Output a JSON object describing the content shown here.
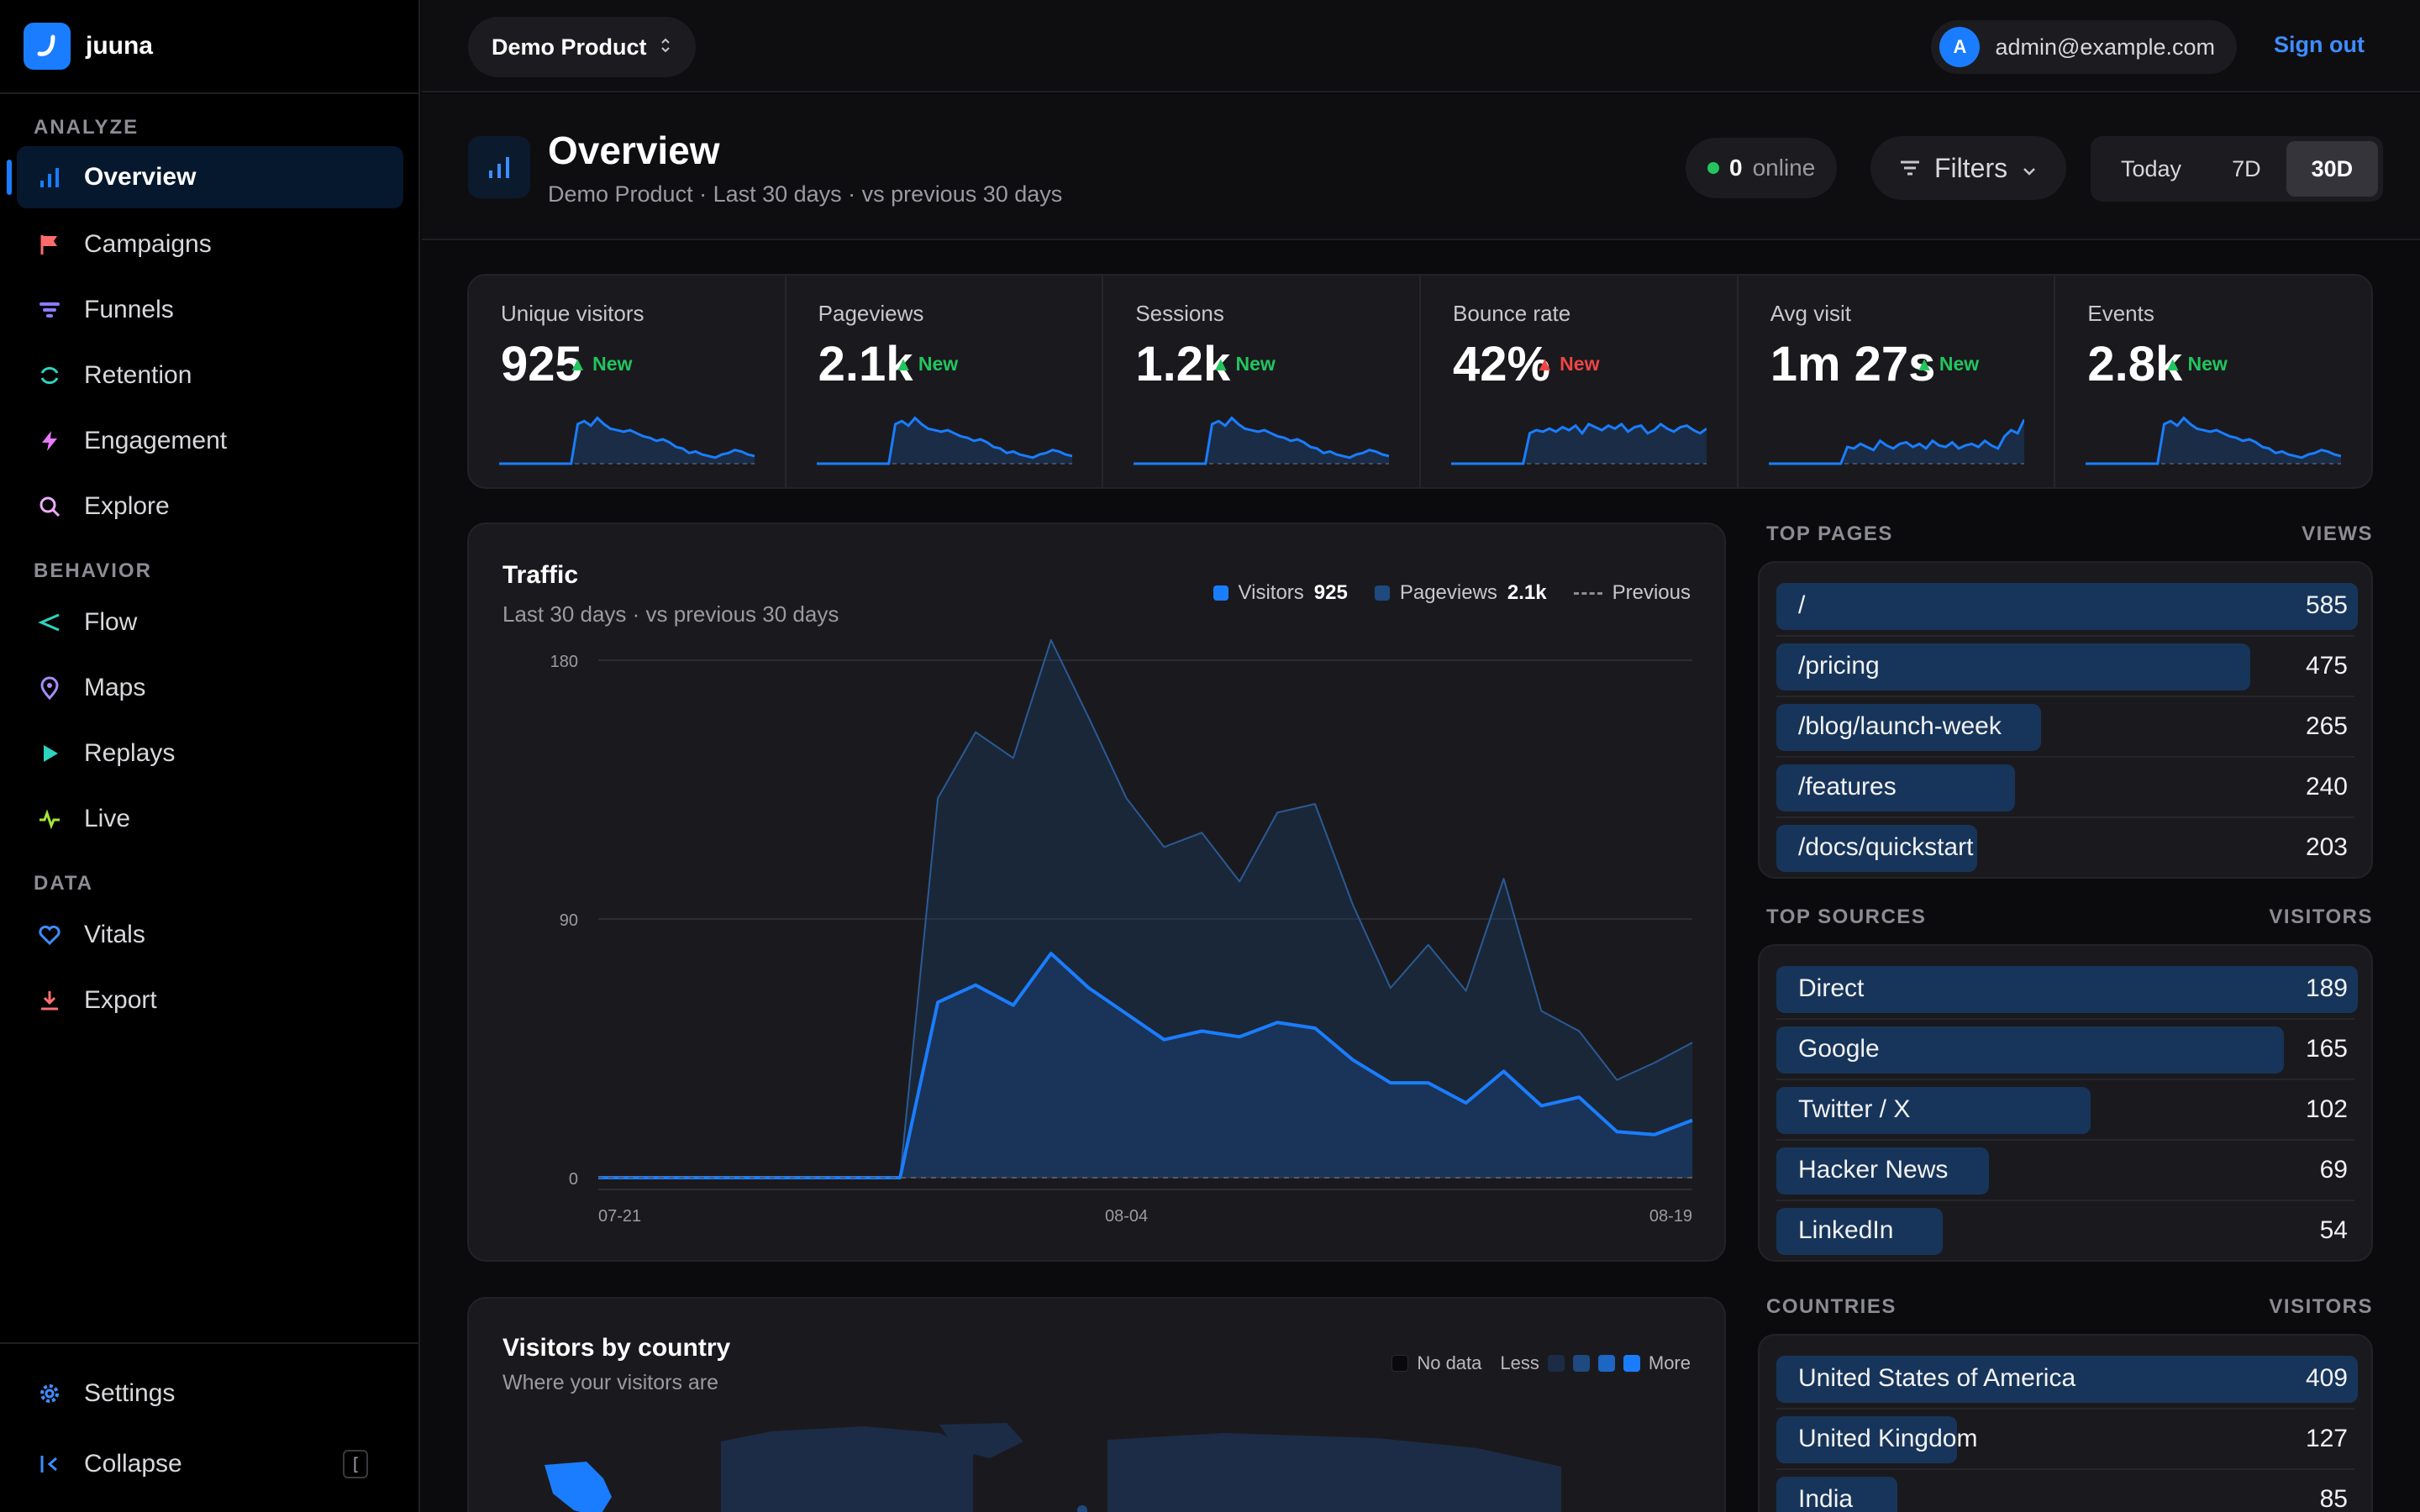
{
  "app": {
    "name": "juuna"
  },
  "sidebar": {
    "sections": [
      {
        "title": "ANALYZE",
        "items": [
          {
            "label": "Overview",
            "icon": "bar-chart-icon",
            "active": true
          },
          {
            "label": "Campaigns",
            "icon": "flag-icon"
          },
          {
            "label": "Funnels",
            "icon": "funnel-icon"
          },
          {
            "label": "Retention",
            "icon": "refresh-icon"
          },
          {
            "label": "Engagement",
            "icon": "bolt-icon"
          },
          {
            "label": "Explore",
            "icon": "search-icon"
          }
        ]
      },
      {
        "title": "BEHAVIOR",
        "items": [
          {
            "label": "Flow",
            "icon": "share-icon"
          },
          {
            "label": "Maps",
            "icon": "map-pin-icon"
          },
          {
            "label": "Replays",
            "icon": "play-icon"
          },
          {
            "label": "Live",
            "icon": "pulse-icon"
          }
        ]
      },
      {
        "title": "DATA",
        "items": [
          {
            "label": "Vitals",
            "icon": "heart-icon"
          },
          {
            "label": "Export",
            "icon": "download-icon"
          }
        ]
      }
    ],
    "settings_label": "Settings",
    "collapse_label": "Collapse",
    "collapse_shortcut": "["
  },
  "topbar": {
    "product": "Demo Product",
    "account_initial": "A",
    "account_email": "admin@example.com",
    "signout_label": "Sign out"
  },
  "header": {
    "title": "Overview",
    "subtitle": "Demo Product · Last 30 days · vs previous 30 days",
    "online_count": "0",
    "online_label": "online",
    "filters_label": "Filters",
    "ranges": [
      "Today",
      "7D",
      "30D"
    ],
    "active_range": "30D"
  },
  "kpis": [
    {
      "label": "Unique visitors",
      "value": "925",
      "trend": "New",
      "direction": "up",
      "spark": [
        0,
        0,
        0,
        0,
        0,
        0,
        0,
        0,
        0,
        0,
        0,
        0,
        52,
        56,
        50,
        60,
        52,
        46,
        44,
        42,
        44,
        40,
        36,
        34,
        30,
        32,
        28,
        22,
        20,
        14,
        16,
        12,
        10,
        8,
        12,
        14,
        18,
        16,
        12,
        10
      ]
    },
    {
      "label": "Pageviews",
      "value": "2.1k",
      "trend": "New",
      "direction": "up",
      "spark": [
        0,
        0,
        0,
        0,
        0,
        0,
        0,
        0,
        0,
        0,
        0,
        0,
        52,
        56,
        50,
        60,
        52,
        46,
        44,
        42,
        44,
        40,
        36,
        34,
        30,
        32,
        28,
        22,
        20,
        14,
        16,
        12,
        10,
        8,
        12,
        14,
        18,
        16,
        12,
        10
      ]
    },
    {
      "label": "Sessions",
      "value": "1.2k",
      "trend": "New",
      "direction": "up",
      "spark": [
        0,
        0,
        0,
        0,
        0,
        0,
        0,
        0,
        0,
        0,
        0,
        0,
        52,
        56,
        50,
        60,
        52,
        46,
        44,
        42,
        44,
        40,
        36,
        34,
        30,
        32,
        28,
        22,
        20,
        14,
        16,
        12,
        10,
        8,
        12,
        14,
        18,
        16,
        12,
        10
      ]
    },
    {
      "label": "Bounce rate",
      "value": "42%",
      "trend": "New",
      "direction": "down",
      "spark": [
        0,
        0,
        0,
        0,
        0,
        0,
        0,
        0,
        0,
        0,
        0,
        0,
        40,
        44,
        42,
        46,
        42,
        48,
        44,
        50,
        40,
        52,
        48,
        44,
        50,
        46,
        52,
        42,
        48,
        50,
        40,
        44,
        52,
        46,
        42,
        48,
        50,
        44,
        40,
        46
      ]
    },
    {
      "label": "Avg visit",
      "value": "1m 27s",
      "trend": "New",
      "direction": "up",
      "spark": [
        0,
        0,
        0,
        0,
        0,
        0,
        0,
        0,
        0,
        0,
        0,
        0,
        22,
        20,
        26,
        22,
        18,
        30,
        24,
        20,
        26,
        28,
        22,
        26,
        20,
        30,
        24,
        22,
        28,
        20,
        24,
        26,
        22,
        30,
        24,
        20,
        36,
        44,
        40,
        58
      ]
    },
    {
      "label": "Events",
      "value": "2.8k",
      "trend": "New",
      "direction": "up",
      "spark": [
        0,
        0,
        0,
        0,
        0,
        0,
        0,
        0,
        0,
        0,
        0,
        0,
        52,
        56,
        50,
        60,
        52,
        46,
        44,
        42,
        44,
        40,
        36,
        34,
        30,
        32,
        28,
        22,
        20,
        14,
        16,
        12,
        10,
        8,
        12,
        14,
        18,
        16,
        12,
        10
      ]
    }
  ],
  "traffic": {
    "title": "Traffic",
    "subtitle": "Last 30 days · vs previous 30 days",
    "legend": {
      "visitors_label": "Visitors",
      "visitors_total": "925",
      "pageviews_label": "Pageviews",
      "pageviews_total": "2.1k",
      "previous_label": "Previous"
    },
    "colors": {
      "visitors": "#1a7dff",
      "pageviews": "#1e4a80"
    }
  },
  "chart_data": {
    "type": "area",
    "x_ticks": [
      "07-21",
      "08-04",
      "08-19"
    ],
    "y_ticks": [
      0,
      90,
      180
    ],
    "ylim": [
      0,
      180
    ],
    "series": [
      {
        "name": "Visitors",
        "values": [
          0,
          0,
          0,
          0,
          0,
          0,
          0,
          0,
          0,
          61,
          67,
          60,
          78,
          66,
          57,
          48,
          51,
          49,
          54,
          52,
          41,
          33,
          33,
          26,
          37,
          25,
          28,
          16,
          15,
          20
        ]
      },
      {
        "name": "Pageviews",
        "values": [
          0,
          0,
          0,
          0,
          0,
          0,
          0,
          0,
          0,
          132,
          155,
          146,
          187,
          160,
          132,
          115,
          120,
          103,
          127,
          130,
          95,
          66,
          81,
          65,
          104,
          58,
          51,
          34,
          40,
          47
        ]
      },
      {
        "name": "Previous",
        "values": [
          0,
          0,
          0,
          0,
          0,
          0,
          0,
          0,
          0,
          0,
          0,
          0,
          0,
          0,
          0,
          0,
          0,
          0,
          0,
          0,
          0,
          0,
          0,
          0,
          0,
          0,
          0,
          0,
          0,
          0
        ]
      }
    ]
  },
  "top_pages": {
    "title": "TOP PAGES",
    "column": "VIEWS",
    "rows": [
      {
        "label": "/",
        "value": "585",
        "share": 1.0
      },
      {
        "label": "/pricing",
        "value": "475",
        "share": 0.815
      },
      {
        "label": "/blog/launch-week",
        "value": "265",
        "share": 0.455
      },
      {
        "label": "/features",
        "value": "240",
        "share": 0.41
      },
      {
        "label": "/docs/quickstart",
        "value": "203",
        "share": 0.345
      }
    ]
  },
  "top_sources": {
    "title": "TOP SOURCES",
    "column": "VISITORS",
    "rows": [
      {
        "label": "Direct",
        "value": "189",
        "share": 1.0
      },
      {
        "label": "Google",
        "value": "165",
        "share": 0.873
      },
      {
        "label": "Twitter / X",
        "value": "102",
        "share": 0.54
      },
      {
        "label": "Hacker News",
        "value": "69",
        "share": 0.365
      },
      {
        "label": "LinkedIn",
        "value": "54",
        "share": 0.286
      }
    ]
  },
  "countries": {
    "title": "COUNTRIES",
    "column": "VISITORS",
    "rows": [
      {
        "label": "United States of America",
        "value": "409",
        "share": 1.0
      },
      {
        "label": "United Kingdom",
        "value": "127",
        "share": 0.311
      },
      {
        "label": "India",
        "value": "85",
        "share": 0.208
      }
    ]
  },
  "map_card": {
    "title": "Visitors by country",
    "subtitle": "Where your visitors are",
    "legend_nodata": "No data",
    "legend_less": "Less",
    "legend_more": "More"
  }
}
